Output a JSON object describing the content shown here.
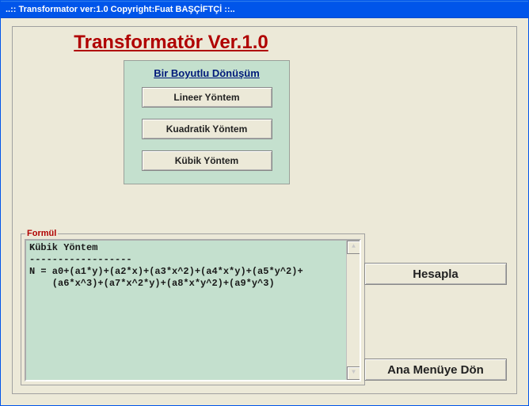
{
  "window": {
    "title": "..:: Transformator ver:1.0  Copyright:Fuat BAŞÇİFTÇİ ::.."
  },
  "app_title": "Transformatör Ver.1.0",
  "method_panel": {
    "heading": "Bir Boyutlu Dönüşüm",
    "buttons": {
      "linear": "Lineer Yöntem",
      "quadratic": "Kuadratik Yöntem",
      "cubic": "Kübik Yöntem"
    }
  },
  "formula": {
    "label": "Formül",
    "title_line": "Kübik Yöntem",
    "divider": "------------------",
    "blank": "",
    "line1": "N = a0+(a1*y)+(a2*x)+(a3*x^2)+(a4*x*y)+(a5*y^2)+",
    "line2": "    (a6*x^3)+(a7*x^2*y)+(a8*x*y^2)+(a9*y^3)"
  },
  "actions": {
    "calculate": "Hesapla",
    "back": "Ana Menüye Dön"
  },
  "colors": {
    "titlebar": "#0055ea",
    "panel_bg": "#ece9d8",
    "mint_bg": "#c4e0ce",
    "heading_red": "#b00000",
    "link_blue": "#001a7a"
  }
}
